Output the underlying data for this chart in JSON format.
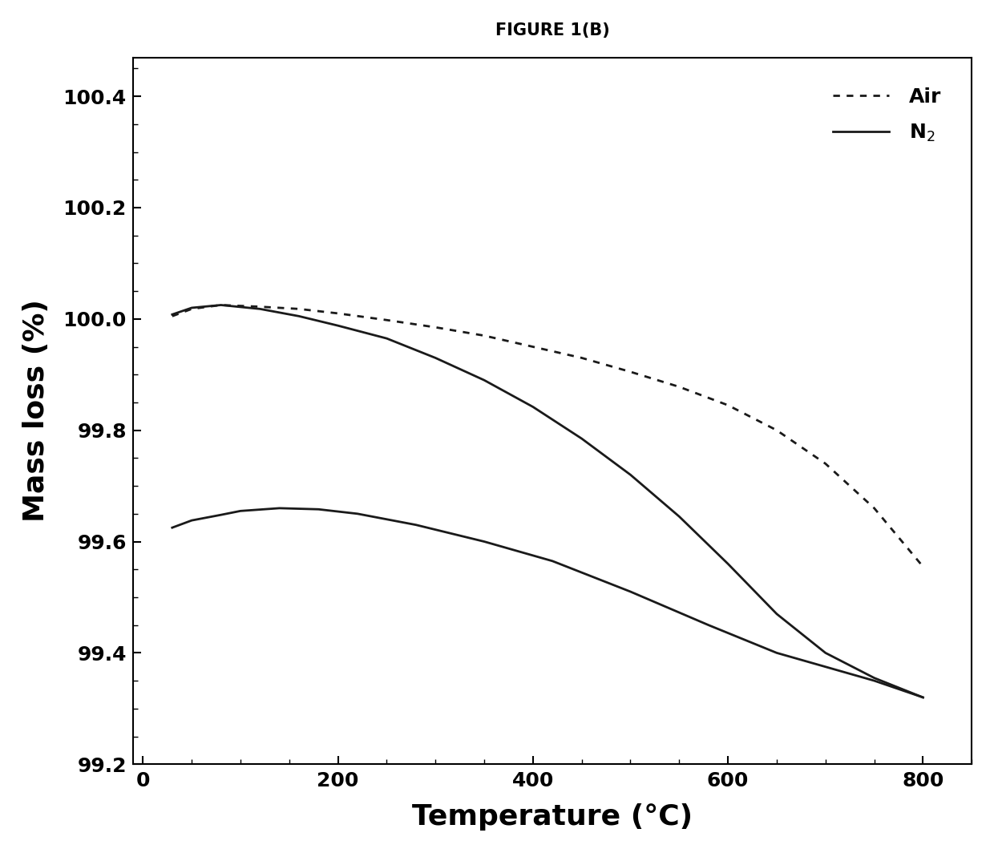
{
  "title": "FIGURE 1(B)",
  "xlabel": "Temperature (°C)",
  "ylabel": "Mass loss (%)",
  "xlim": [
    -10,
    850
  ],
  "ylim": [
    99.2,
    100.47
  ],
  "xticks": [
    0,
    200,
    400,
    600,
    800
  ],
  "yticks": [
    99.2,
    99.4,
    99.6,
    99.8,
    100.0,
    100.2,
    100.4
  ],
  "air_x": [
    30,
    50,
    80,
    120,
    160,
    200,
    250,
    300,
    350,
    400,
    450,
    500,
    550,
    600,
    650,
    700,
    750,
    800
  ],
  "air_y": [
    100.005,
    100.018,
    100.025,
    100.022,
    100.018,
    100.01,
    99.998,
    99.985,
    99.97,
    99.95,
    99.93,
    99.905,
    99.878,
    99.845,
    99.8,
    99.74,
    99.66,
    99.555
  ],
  "n2_upper_x": [
    30,
    50,
    80,
    120,
    160,
    200,
    250,
    300,
    350,
    400,
    450,
    500,
    550,
    600,
    650,
    700,
    750,
    800
  ],
  "n2_upper_y": [
    100.008,
    100.02,
    100.025,
    100.018,
    100.005,
    99.988,
    99.965,
    99.93,
    99.89,
    99.842,
    99.785,
    99.72,
    99.645,
    99.56,
    99.47,
    99.4,
    99.355,
    99.32
  ],
  "n2_lower_x": [
    30,
    50,
    80,
    100,
    140,
    180,
    220,
    280,
    350,
    420,
    500,
    580,
    650,
    700,
    750,
    800
  ],
  "n2_lower_y": [
    99.625,
    99.638,
    99.648,
    99.655,
    99.66,
    99.658,
    99.65,
    99.63,
    99.6,
    99.565,
    99.51,
    99.45,
    99.4,
    99.375,
    99.35,
    99.32
  ],
  "line_color": "#1a1a1a",
  "background_color": "#ffffff",
  "title_fontsize": 15,
  "axis_label_fontsize": 26,
  "tick_fontsize": 18,
  "legend_fontsize": 18,
  "linewidth": 2.0
}
